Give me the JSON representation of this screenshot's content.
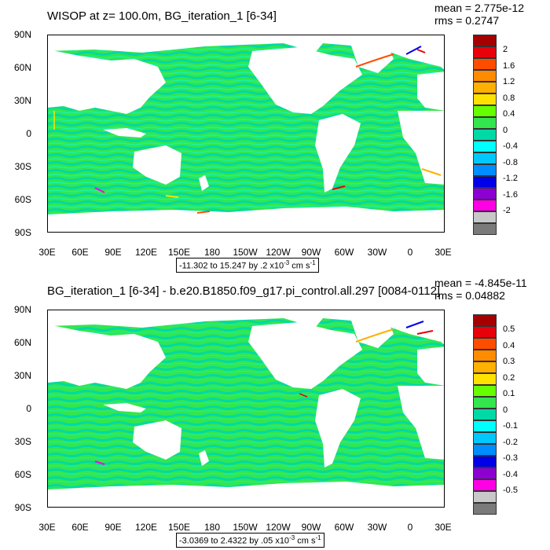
{
  "panels": [
    {
      "title": "WISOP at z= 100.0m, BG_iteration_1 [6-34]",
      "mean": "mean = 2.775e-12",
      "rms": "rms = 0.2747",
      "range_label": "-11.302 to 15.247 by .2 x10",
      "range_exp": "-3",
      "range_unit": " cm s",
      "range_unit_exp": "-1",
      "colorbar_labels": [
        "2",
        "1.6",
        "1.2",
        "0.8",
        "0.4",
        "0",
        "-0.4",
        "-0.8",
        "-1.2",
        "-1.6",
        "-2"
      ]
    },
    {
      "title": "BG_iteration_1 [6-34] - b.e20.B1850.f09_g17.pi_control.all.297 [0084-0112]",
      "mean": "mean = -4.845e-11",
      "rms": "rms = 0.04882",
      "range_label": "-3.0369 to 2.4322 by .05 x10",
      "range_exp": "-3",
      "range_unit": " cm s",
      "range_unit_exp": "-1",
      "colorbar_labels": [
        "0.5",
        "0.4",
        "0.3",
        "0.2",
        "0.1",
        "0",
        "-0.1",
        "-0.2",
        "-0.3",
        "-0.4",
        "-0.5"
      ]
    }
  ],
  "axes": {
    "lat_labels": [
      "90N",
      "60N",
      "30N",
      "0",
      "30S",
      "60S",
      "90S"
    ],
    "lon_labels": [
      "30E",
      "60E",
      "90E",
      "120E",
      "150E",
      "180",
      "150W",
      "120W",
      "90W",
      "60W",
      "30W",
      "0",
      "30E"
    ]
  },
  "colormap": [
    "#a50000",
    "#e8000b",
    "#ff4d00",
    "#ff8c00",
    "#ffb000",
    "#ffe100",
    "#66ff00",
    "#33e64d",
    "#00d9a6",
    "#00ffff",
    "#00c8ff",
    "#008dff",
    "#0000e8",
    "#8c00d4",
    "#ff00e6",
    "#c8c8c8",
    "#7a7a7a"
  ]
}
